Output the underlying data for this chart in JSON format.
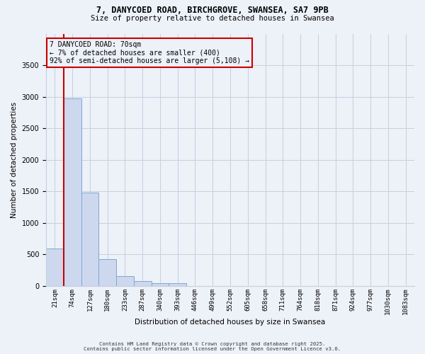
{
  "title_line1": "7, DANYCOED ROAD, BIRCHGROVE, SWANSEA, SA7 9PB",
  "title_line2": "Size of property relative to detached houses in Swansea",
  "xlabel": "Distribution of detached houses by size in Swansea",
  "ylabel": "Number of detached properties",
  "bar_color": "#cdd8ee",
  "bar_edge_color": "#7da8d4",
  "categories": [
    "21sqm",
    "74sqm",
    "127sqm",
    "180sqm",
    "233sqm",
    "287sqm",
    "340sqm",
    "393sqm",
    "446sqm",
    "499sqm",
    "552sqm",
    "605sqm",
    "658sqm",
    "711sqm",
    "764sqm",
    "818sqm",
    "871sqm",
    "924sqm",
    "977sqm",
    "1030sqm",
    "1083sqm"
  ],
  "values": [
    590,
    2970,
    1480,
    430,
    160,
    80,
    50,
    40,
    5,
    0,
    0,
    0,
    0,
    0,
    0,
    0,
    0,
    0,
    0,
    0,
    0
  ],
  "ylim": [
    0,
    4000
  ],
  "yticks": [
    0,
    500,
    1000,
    1500,
    2000,
    2500,
    3000,
    3500
  ],
  "annotation_line1": "7 DANYCOED ROAD: 70sqm",
  "annotation_line2": "← 7% of detached houses are smaller (400)",
  "annotation_line3": "92% of semi-detached houses are larger (5,108) →",
  "annotation_box_color": "#cc0000",
  "vline_color": "#cc0000",
  "grid_color": "#c5cfe0",
  "background_color": "#edf1f8",
  "footer_line1": "Contains HM Land Registry data © Crown copyright and database right 2025.",
  "footer_line2": "Contains public sector information licensed under the Open Government Licence v3.0.",
  "fig_width": 6.0,
  "fig_height": 5.0,
  "dpi": 100
}
